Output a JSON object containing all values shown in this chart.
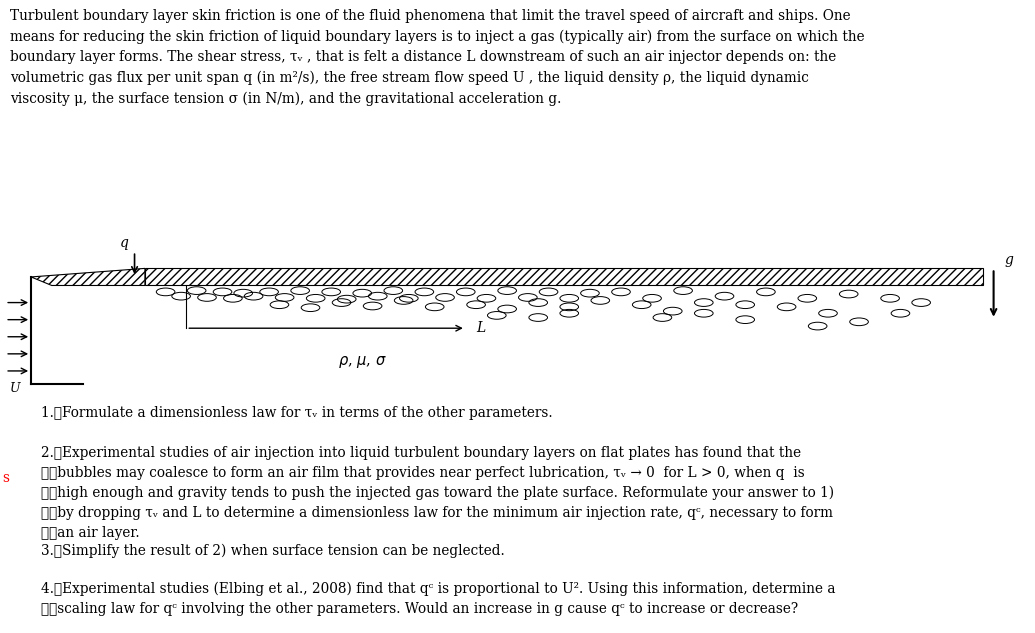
{
  "bg_color": "#ffffff",
  "text_color": "#000000",
  "intro_text": "Turbulent boundary layer skin friction is one of the fluid phenomena that limit the travel speed of aircraft and ships. One\nmeans for reducing the skin friction of liquid boundary layers is to inject a gas (typically air) from the surface on which the\nboundary layer forms. The shear stress, τᵥ , that is felt a distance L downstream of such an air injector depends on: the\nvolumetric gas flux per unit span q (in m²/s), the free stream flow speed U , the liquid density ρ, the liquid dynamic\nviscosity μ, the surface tension σ (in N/m), and the gravitational acceleration g.",
  "questions": [
    "1.\tFormulate a dimensionless law for τᵥ in terms of the other parameters.",
    "2.\tExperimental studies of air injection into liquid turbulent boundary layers on flat plates has found that the\n\tbubbles may coalesce to form an air film that provides near perfect lubrication, τᵥ → 0  for L > 0, when q  is\n\thigh enough and gravity tends to push the injected gas toward the plate surface. Reformulate your answer to 1)\n\tby dropping τᵥ and L to determine a dimensionless law for the minimum air injection rate, qᶜ, necessary to form\n\tan air layer.",
    "3.\tSimplify the result of 2) when surface tension can be neglected.",
    "4.\tExperimental studies (Elbing et al., 2008) find that qᶜ is proportional to U². Using this information, determine a\n\tscaling law for qᶜ involving the other parameters. Would an increase in g cause qᶜ to increase or decrease?"
  ],
  "figsize": [
    10.35,
    6.33
  ],
  "dpi": 100
}
